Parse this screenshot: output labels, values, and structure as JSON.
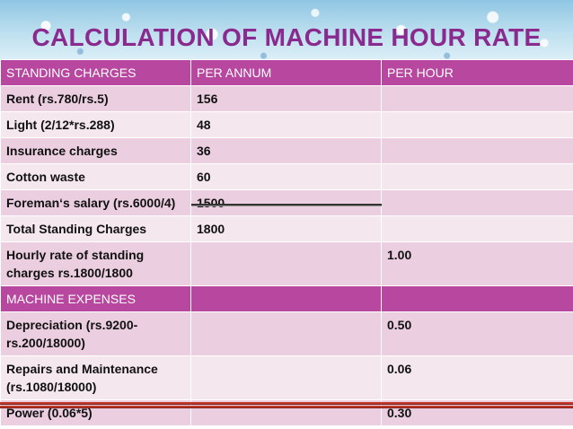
{
  "title": "CALCULATION OF MACHINE HOUR RATE",
  "columns": [
    "STANDING CHARGES",
    "PER ANNUM",
    "PER HOUR"
  ],
  "rows": [
    {
      "label": "Rent  (rs.780/rs.5)",
      "annum": "156",
      "hour": ""
    },
    {
      "label": "Light  (2/12*rs.288)",
      "annum": "48",
      "hour": ""
    },
    {
      "label": "Insurance charges",
      "annum": "36",
      "hour": ""
    },
    {
      "label": "Cotton waste",
      "annum": "60",
      "hour": ""
    },
    {
      "label": "Foreman‘s salary (rs.6000/4)",
      "annum": "1500",
      "hour": ""
    },
    {
      "label": "Total Standing Charges",
      "annum": "1800",
      "hour": ""
    },
    {
      "label": "Hourly rate of standing charges  rs.1800/1800",
      "annum": "",
      "hour": "1.00"
    }
  ],
  "section2": "MACHINE EXPENSES",
  "rows2": [
    {
      "label": "Depreciation (rs.9200-rs.200/18000)",
      "annum": "",
      "hour": "0.50"
    },
    {
      "label": "Repairs and Maintenance (rs.1080/18000)",
      "annum": "",
      "hour": "0.06"
    },
    {
      "label": "Power (0.06*5)",
      "annum": "",
      "hour": "0.30"
    }
  ]
}
